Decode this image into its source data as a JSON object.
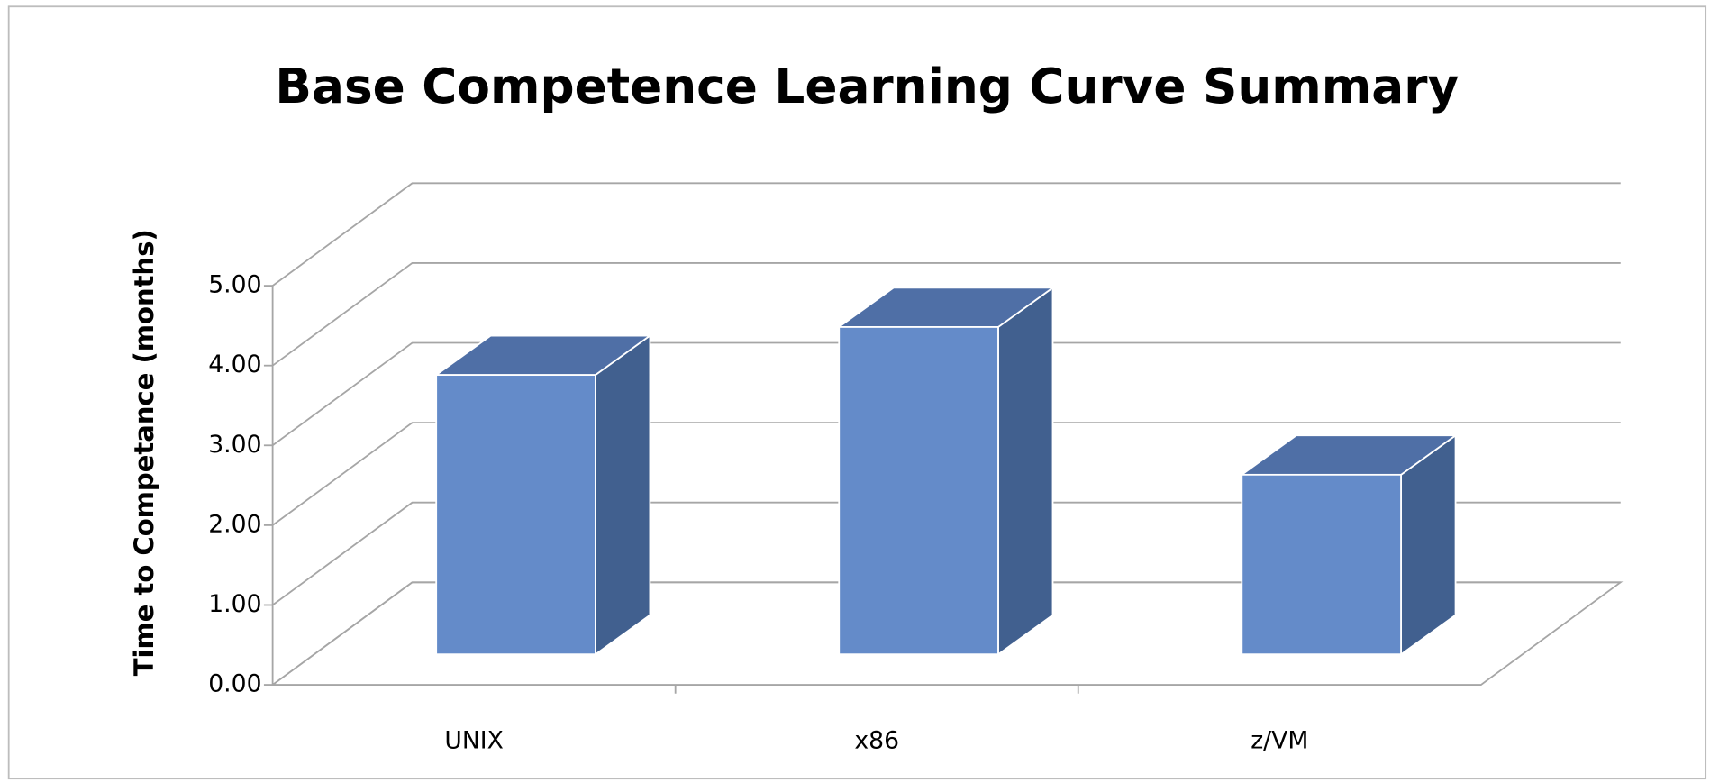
{
  "chart_data": {
    "type": "bar3d",
    "title": "Base Competence Learning Curve Summary",
    "y_label": "Time to Competance (months)",
    "categories": [
      "UNIX",
      "x86",
      "z/VM"
    ],
    "values": [
      3.5,
      4.1,
      2.25
    ],
    "color": "#648bc9",
    "ylim": [
      0,
      5
    ],
    "yticks": [
      {
        "value": 0,
        "label": "0.00"
      },
      {
        "value": 1,
        "label": "1.00"
      },
      {
        "value": 2,
        "label": "2.00"
      },
      {
        "value": 3,
        "label": "3.00"
      },
      {
        "value": 4,
        "label": "4.00"
      },
      {
        "value": 5,
        "label": "5.00"
      }
    ],
    "grid": true
  }
}
